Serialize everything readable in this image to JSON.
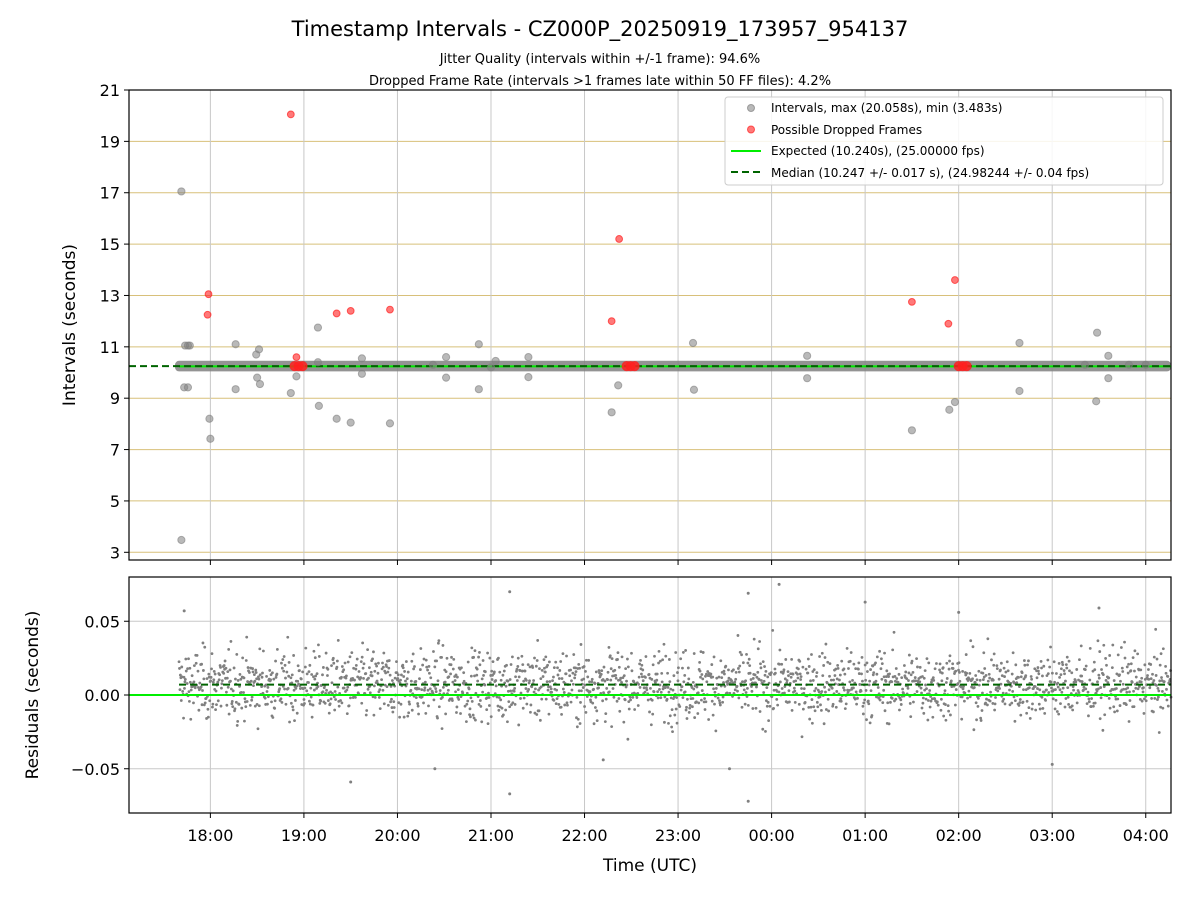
{
  "chart_data": {
    "type": "scatter",
    "title": "Timestamp Intervals - CZ000P_20250919_173957_954137",
    "subtitle_1": "Jitter Quality (intervals within +/-1 frame): 94.6%",
    "subtitle_2": "Dropped Frame Rate (intervals >1 frames late within 50 FF files): 4.2%",
    "colors": {
      "intervals": "#808080",
      "dropped": "#ff2020",
      "expected": "#00ee00",
      "median": "#006400",
      "hgrid_top": "#d8c07a",
      "grid": "#c8c8c8"
    },
    "top_panel": {
      "ylabel": "Intervals (seconds)",
      "ylim": [
        2.7,
        21
      ],
      "yticks": [
        3,
        5,
        7,
        9,
        11,
        13,
        15,
        17,
        19,
        21
      ],
      "ytick_labels": [
        "3",
        "5",
        "7",
        "9",
        "11",
        "13",
        "15",
        "17",
        "19",
        "21"
      ],
      "expected": 10.24,
      "median": 10.247,
      "baseline_band": [
        10.2,
        10.3
      ],
      "legend": {
        "position": "upper-right",
        "entries": [
          "Intervals, max (20.058s), min (3.483s)",
          "Possible Dropped Frames",
          "Expected (10.240s), (25.00000 fps)",
          "Median (10.247 +/- 0.017 s), (24.98244 +/- 0.04 fps)"
        ]
      },
      "intervals": [
        [
          17.69,
          17.05
        ],
        [
          17.69,
          3.48
        ],
        [
          17.73,
          11.05
        ],
        [
          17.76,
          11.05
        ],
        [
          17.78,
          11.05
        ],
        [
          17.72,
          9.42
        ],
        [
          17.76,
          9.42
        ],
        [
          17.99,
          8.2
        ],
        [
          18.0,
          7.42
        ],
        [
          18.27,
          11.1
        ],
        [
          18.27,
          9.35
        ],
        [
          18.49,
          10.7
        ],
        [
          18.52,
          10.9
        ],
        [
          18.5,
          9.8
        ],
        [
          18.53,
          9.55
        ],
        [
          18.86,
          9.2
        ],
        [
          18.92,
          9.85
        ],
        [
          19.15,
          11.75
        ],
        [
          19.15,
          10.4
        ],
        [
          19.16,
          8.7
        ],
        [
          19.35,
          8.2
        ],
        [
          19.5,
          8.05
        ],
        [
          19.62,
          10.55
        ],
        [
          19.62,
          9.95
        ],
        [
          19.92,
          8.02
        ],
        [
          20.38,
          10.3
        ],
        [
          20.52,
          10.6
        ],
        [
          20.52,
          9.8
        ],
        [
          20.87,
          11.1
        ],
        [
          20.87,
          9.35
        ],
        [
          21.0,
          10.2
        ],
        [
          21.05,
          10.45
        ],
        [
          21.4,
          10.6
        ],
        [
          21.4,
          9.82
        ],
        [
          22.29,
          8.45
        ],
        [
          22.36,
          9.5
        ],
        [
          23.16,
          11.15
        ],
        [
          23.17,
          9.33
        ],
        [
          24.38,
          10.65
        ],
        [
          24.38,
          9.78
        ],
        [
          25.9,
          8.55
        ],
        [
          25.96,
          8.85
        ],
        [
          25.5,
          7.75
        ],
        [
          26.65,
          11.15
        ],
        [
          26.65,
          9.28
        ],
        [
          27.35,
          10.3
        ],
        [
          27.48,
          11.55
        ],
        [
          27.47,
          8.88
        ],
        [
          27.6,
          10.65
        ],
        [
          27.6,
          9.78
        ],
        [
          27.82,
          10.3
        ],
        [
          28.0,
          10.3
        ]
      ],
      "dropped": [
        [
          18.86,
          20.05
        ],
        [
          17.98,
          13.05
        ],
        [
          17.97,
          12.25
        ],
        [
          18.92,
          10.6
        ],
        [
          19.35,
          12.3
        ],
        [
          19.5,
          12.4
        ],
        [
          19.92,
          12.45
        ],
        [
          22.37,
          15.2
        ],
        [
          22.29,
          12.0
        ],
        [
          25.5,
          12.75
        ],
        [
          25.89,
          11.9
        ],
        [
          25.96,
          13.6
        ],
        [
          18.9,
          10.25
        ],
        [
          22.45,
          10.25
        ],
        [
          26.0,
          10.25
        ]
      ]
    },
    "bottom_panel": {
      "ylabel": "Residuals (seconds)",
      "ylim": [
        -0.08,
        0.08
      ],
      "yticks": [
        -0.05,
        0.0,
        0.05
      ],
      "ytick_labels": [
        "−0.05",
        "0.00",
        "0.05"
      ],
      "expected": 0.0,
      "median": 0.007,
      "outliers": [
        [
          17.72,
          0.057
        ],
        [
          21.2,
          0.07
        ],
        [
          21.2,
          -0.067
        ],
        [
          23.75,
          0.069
        ],
        [
          23.75,
          -0.072
        ],
        [
          24.08,
          0.075
        ],
        [
          22.2,
          -0.044
        ],
        [
          20.4,
          -0.05
        ],
        [
          19.5,
          -0.059
        ],
        [
          23.55,
          -0.05
        ],
        [
          26.0,
          0.056
        ],
        [
          27.5,
          0.059
        ],
        [
          27.0,
          -0.047
        ],
        [
          25.0,
          0.063
        ]
      ]
    },
    "xaxis": {
      "label": "Time (UTC)",
      "xlim": [
        17.13,
        28.27
      ],
      "start": 17.665,
      "end": 28.27,
      "ticks": [
        18,
        19,
        20,
        21,
        22,
        23,
        24,
        25,
        26,
        27,
        28
      ],
      "tick_labels": [
        "18:00",
        "19:00",
        "20:00",
        "21:00",
        "22:00",
        "23:00",
        "00:00",
        "01:00",
        "02:00",
        "03:00",
        "04:00"
      ]
    }
  }
}
